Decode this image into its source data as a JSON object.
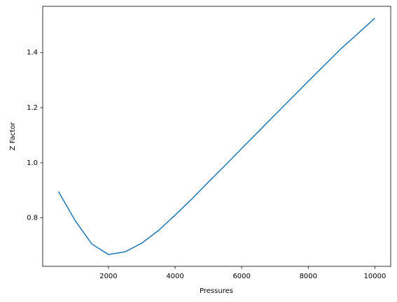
{
  "chart_data": {
    "type": "line",
    "x_label": "Pressures",
    "y_label": "Z Factor",
    "x": [
      500,
      1000,
      1500,
      2000,
      2500,
      3000,
      3500,
      4000,
      4500,
      5000,
      5500,
      6000,
      6500,
      7000,
      7500,
      8000,
      8500,
      9000,
      9500,
      10000
    ],
    "series": [
      {
        "name": "Z Factor",
        "color": "#1f77b4",
        "values": [
          0.895,
          0.79,
          0.705,
          0.667,
          0.677,
          0.708,
          0.754,
          0.81,
          0.868,
          0.93,
          0.99,
          1.052,
          1.113,
          1.174,
          1.235,
          1.296,
          1.356,
          1.416,
          1.47,
          1.525
        ]
      }
    ],
    "xlim": [
      25,
      10475
    ],
    "ylim": [
      0.624,
      1.568
    ],
    "xticks": [
      2000,
      4000,
      6000,
      8000,
      10000
    ],
    "yticks": [
      0.8,
      {
        "value": 1,
        "label": "1.0"
      },
      1.2,
      1.4
    ]
  }
}
